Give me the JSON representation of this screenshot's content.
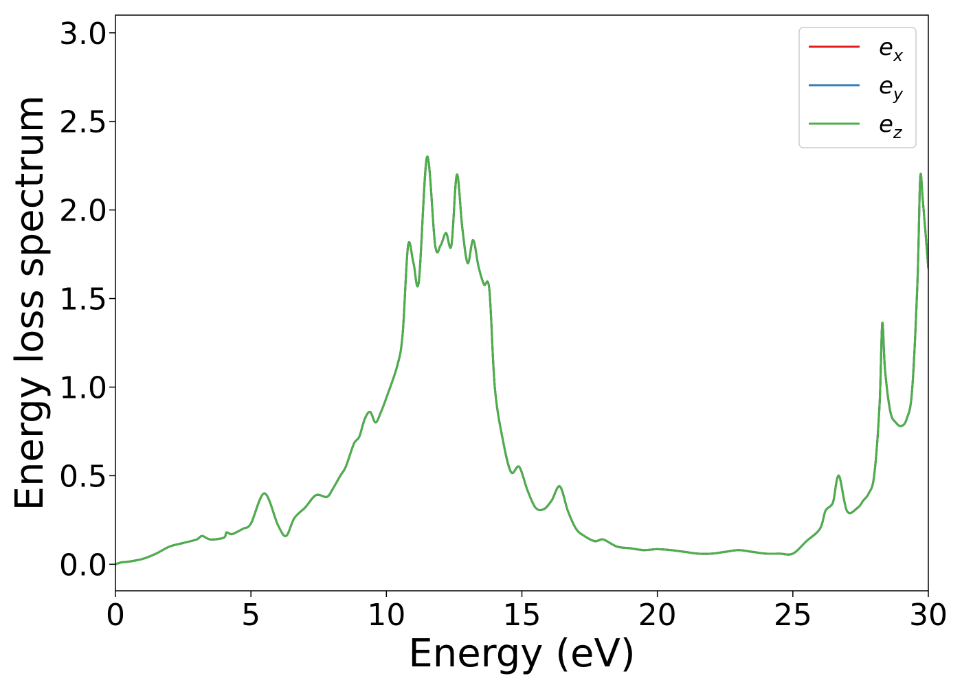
{
  "chart_data": {
    "type": "line",
    "xlabel": "Energy (eV)",
    "ylabel": "Energy loss spectrum",
    "xlim": [
      0,
      30
    ],
    "ylim": [
      -0.15,
      3.1
    ],
    "x_ticks": [
      "0",
      "5",
      "10",
      "15",
      "20",
      "25",
      "30"
    ],
    "y_ticks": [
      "0.0",
      "0.5",
      "1.0",
      "1.5",
      "2.0",
      "2.5",
      "3.0"
    ],
    "grid": false,
    "legend": {
      "placement": "top-right",
      "entries": [
        {
          "base": "e",
          "sub": "x",
          "color": "#e41a1c"
        },
        {
          "base": "e",
          "sub": "y",
          "color": "#377eb8"
        },
        {
          "base": "e",
          "sub": "z",
          "color": "#4daf4a"
        }
      ]
    },
    "series": [
      {
        "color": "#e41a1c"
      },
      {
        "color": "#377eb8"
      },
      {
        "color": "#4daf4a"
      }
    ],
    "x": [
      0,
      0.2,
      0.5,
      1.0,
      1.5,
      2.0,
      2.5,
      3.0,
      3.2,
      3.5,
      4.0,
      4.1,
      4.3,
      4.7,
      5.0,
      5.5,
      6.0,
      6.3,
      6.6,
      7.0,
      7.4,
      7.8,
      8.0,
      8.3,
      8.5,
      8.8,
      9.0,
      9.2,
      9.4,
      9.6,
      9.8,
      10.0,
      10.4,
      10.6,
      10.8,
      11.0,
      11.2,
      11.5,
      11.8,
      12.0,
      12.2,
      12.4,
      12.6,
      12.8,
      13.0,
      13.2,
      13.4,
      13.6,
      13.8,
      14.0,
      14.3,
      14.6,
      14.9,
      15.2,
      15.5,
      15.8,
      16.1,
      16.4,
      16.7,
      17.0,
      17.3,
      17.7,
      18.0,
      18.5,
      19.0,
      19.5,
      20.0,
      20.5,
      21.0,
      21.5,
      22.0,
      22.5,
      23.0,
      23.5,
      24.0,
      24.5,
      25.0,
      25.5,
      26.0,
      26.2,
      26.4,
      26.5,
      26.7,
      27.0,
      27.4,
      27.6,
      27.8,
      28.0,
      28.2,
      28.3,
      28.4,
      28.6,
      28.8,
      29.0,
      29.2,
      29.4,
      29.6,
      29.7,
      29.8,
      30.0
    ],
    "y": [
      0.0,
      0.01,
      0.015,
      0.03,
      0.06,
      0.1,
      0.12,
      0.14,
      0.16,
      0.14,
      0.15,
      0.18,
      0.17,
      0.2,
      0.23,
      0.4,
      0.22,
      0.16,
      0.26,
      0.32,
      0.39,
      0.38,
      0.42,
      0.5,
      0.55,
      0.68,
      0.72,
      0.82,
      0.86,
      0.8,
      0.86,
      0.94,
      1.12,
      1.3,
      1.8,
      1.7,
      1.6,
      2.3,
      1.8,
      1.8,
      1.87,
      1.8,
      2.2,
      1.9,
      1.7,
      1.83,
      1.68,
      1.58,
      1.55,
      1.0,
      0.7,
      0.52,
      0.55,
      0.42,
      0.32,
      0.31,
      0.36,
      0.44,
      0.3,
      0.2,
      0.16,
      0.13,
      0.14,
      0.1,
      0.09,
      0.08,
      0.085,
      0.08,
      0.07,
      0.06,
      0.06,
      0.07,
      0.08,
      0.07,
      0.06,
      0.06,
      0.06,
      0.13,
      0.2,
      0.3,
      0.33,
      0.36,
      0.5,
      0.3,
      0.32,
      0.36,
      0.4,
      0.5,
      0.9,
      1.36,
      1.1,
      0.86,
      0.8,
      0.78,
      0.82,
      0.98,
      1.6,
      2.18,
      2.05,
      1.67
    ]
  }
}
